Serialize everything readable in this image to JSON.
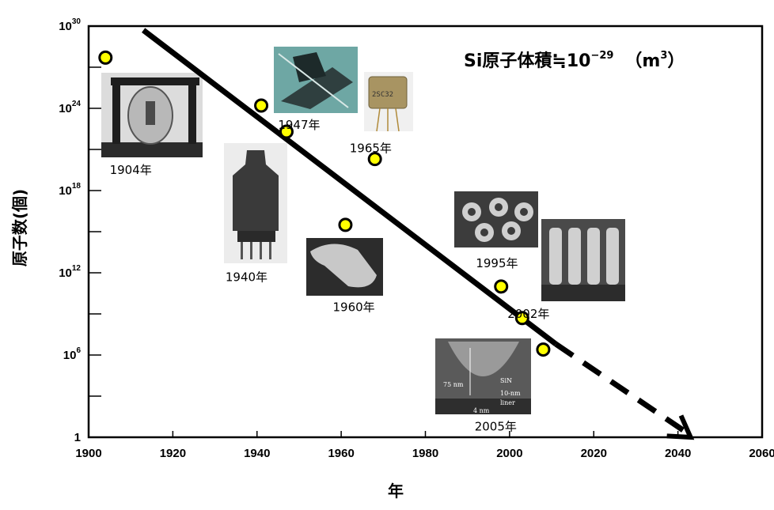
{
  "chart_data": {
    "type": "scatter",
    "title": "",
    "xlabel": "年",
    "ylabel": "原子数(個)",
    "xlim": [
      1900,
      2060
    ],
    "ylim_log10": [
      0,
      30
    ],
    "x_ticks": [
      1900,
      1920,
      1940,
      1960,
      1980,
      2000,
      2020,
      2040,
      2060
    ],
    "y_tick_labels": [
      {
        "exp": 30,
        "base": "10",
        "sup": "30"
      },
      {
        "exp": 24,
        "base": "10",
        "sup": "24"
      },
      {
        "exp": 18,
        "base": "10",
        "sup": "18"
      },
      {
        "exp": 12,
        "base": "10",
        "sup": "12"
      },
      {
        "exp": 6,
        "base": "10",
        "sup": "6"
      },
      {
        "exp": 0,
        "base": "1",
        "sup": ""
      }
    ],
    "y_minor_tick_exps": [
      27,
      21,
      15,
      9,
      3
    ],
    "points": [
      {
        "x": 1904,
        "log10_y": 27.7
      },
      {
        "x": 1941,
        "log10_y": 24.2
      },
      {
        "x": 1947,
        "log10_y": 22.3
      },
      {
        "x": 1968,
        "log10_y": 20.3
      },
      {
        "x": 1961,
        "log10_y": 15.5
      },
      {
        "x": 1998,
        "log10_y": 11.0
      },
      {
        "x": 2003,
        "log10_y": 8.7
      },
      {
        "x": 2008,
        "log10_y": 6.4
      }
    ],
    "trend_solid": {
      "x": [
        1913,
        2011
      ],
      "log10_y": [
        29.7,
        6.8
      ]
    },
    "trend_dashed": {
      "x": [
        2011,
        2043
      ],
      "log10_y": [
        6.8,
        0
      ]
    },
    "annotations": [
      {
        "text": "1904年",
        "x": 1910.0,
        "log10_y": 19.2
      },
      {
        "text": "1940年",
        "x": 1937.5,
        "log10_y": 11.4
      },
      {
        "text": "1947年",
        "x": 1950.0,
        "log10_y": 22.5
      },
      {
        "text": "1965年",
        "x": 1967.0,
        "log10_y": 20.8
      },
      {
        "text": "1960年",
        "x": 1963.0,
        "log10_y": 9.2
      },
      {
        "text": "1995年",
        "x": 1997.0,
        "log10_y": 12.4
      },
      {
        "text": "2002年",
        "x": 2004.5,
        "log10_y": 8.7
      },
      {
        "text": "2005年",
        "x": 1996.7,
        "log10_y": 0.5
      }
    ],
    "formula": {
      "main": "Si原子体積≒10",
      "exp": "−29",
      "unit_open": "（m",
      "unit_sup": "3",
      "unit_close": "）"
    },
    "point_fill": "#ffff00",
    "point_stroke": "#000000"
  }
}
